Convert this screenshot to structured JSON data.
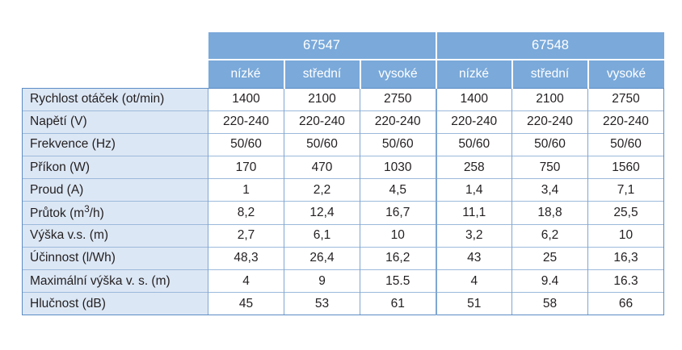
{
  "models": [
    "67547",
    "67548"
  ],
  "speeds": [
    "nízké",
    "střední",
    "vysoké",
    "nízké",
    "střední",
    "vysoké"
  ],
  "rows": [
    {
      "label": "Rychlost otáček (ot/min)",
      "values": [
        "1400",
        "2100",
        "2750",
        "1400",
        "2100",
        "2750"
      ]
    },
    {
      "label": "Napětí (V)",
      "values": [
        "220-240",
        "220-240",
        "220-240",
        "220-240",
        "220-240",
        "220-240"
      ]
    },
    {
      "label": "Frekvence (Hz)",
      "values": [
        "50/60",
        "50/60",
        "50/60",
        "50/60",
        "50/60",
        "50/60"
      ]
    },
    {
      "label": "Příkon (W)",
      "values": [
        "170",
        "470",
        "1030",
        "258",
        "750",
        "1560"
      ]
    },
    {
      "label": "Proud (A)",
      "values": [
        "1",
        "2,2",
        "4,5",
        "1,4",
        "3,4",
        "7,1"
      ]
    },
    {
      "label_pre": "Průtok (m",
      "label_sup": "3",
      "label_post": "/h)",
      "values": [
        "8,2",
        "12,4",
        "16,7",
        "11,1",
        "18,8",
        "25,5"
      ]
    },
    {
      "label": "Výška v.s. (m)",
      "values": [
        "2,7",
        "6,1",
        "10",
        "3,2",
        "6,2",
        "10"
      ]
    },
    {
      "label": "Účinnost (l/Wh)",
      "values": [
        "48,3",
        "26,4",
        "16,2",
        "43",
        "25",
        "16,3"
      ]
    },
    {
      "label": "Maximální výška v. s. (m)",
      "values": [
        "4",
        "9",
        "15.5",
        "4",
        "9.4",
        "16.3"
      ]
    },
    {
      "label": "Hlučnost (dB)",
      "values": [
        "45",
        "53",
        "61",
        "51",
        "58",
        "66"
      ]
    }
  ]
}
